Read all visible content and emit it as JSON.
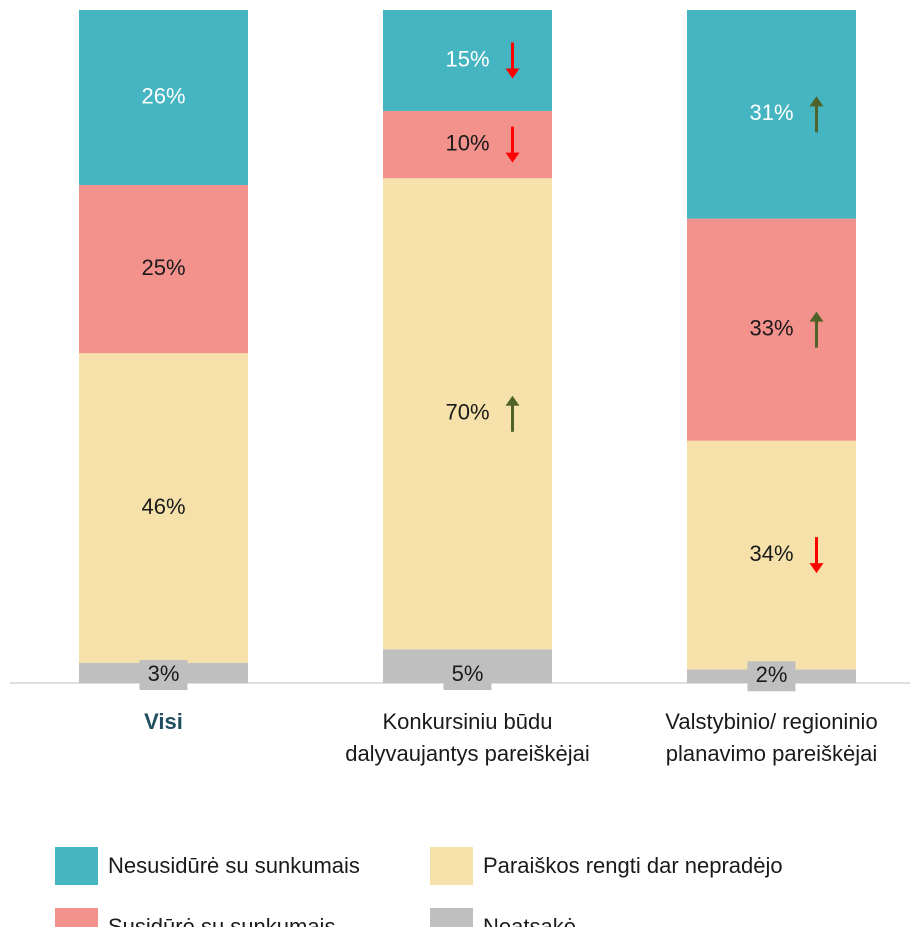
{
  "chart_data": {
    "type": "stacked_bar",
    "categories": [
      [
        "Visi"
      ],
      [
        "Konkursiniu būdu",
        "dalyvaujantys pareiškėjai"
      ],
      [
        "Valstybinio/ regioninio",
        "planavimo pareiškėjai"
      ]
    ],
    "ylim": [
      0,
      100
    ],
    "series": [
      {
        "name": "Neatsakė",
        "color": "#bfbfbf",
        "values": [
          3,
          5,
          2
        ],
        "value_labels": [
          "3%",
          "5%",
          "2%"
        ],
        "arrows": [
          null,
          null,
          null
        ]
      },
      {
        "name": "Paraiškos rengti dar nepradėjo",
        "color": "#f5e1a9",
        "values": [
          46,
          70,
          34
        ],
        "value_labels": [
          "46%",
          "70%",
          "34%"
        ],
        "arrows": [
          null,
          "up",
          "down"
        ]
      },
      {
        "name": "Susidūrė su sunkumais",
        "color": "#f3918d",
        "values": [
          25,
          10,
          33
        ],
        "value_labels": [
          "25%",
          "10%",
          "33%"
        ],
        "arrows": [
          null,
          "down",
          "up"
        ]
      },
      {
        "name": "Nesusidūrė su sunkumais",
        "color": "#45b5c1",
        "values": [
          26,
          15,
          31
        ],
        "value_labels": [
          "26%",
          "15%",
          "31%"
        ],
        "arrows": [
          null,
          "down",
          "up"
        ]
      }
    ]
  }
}
